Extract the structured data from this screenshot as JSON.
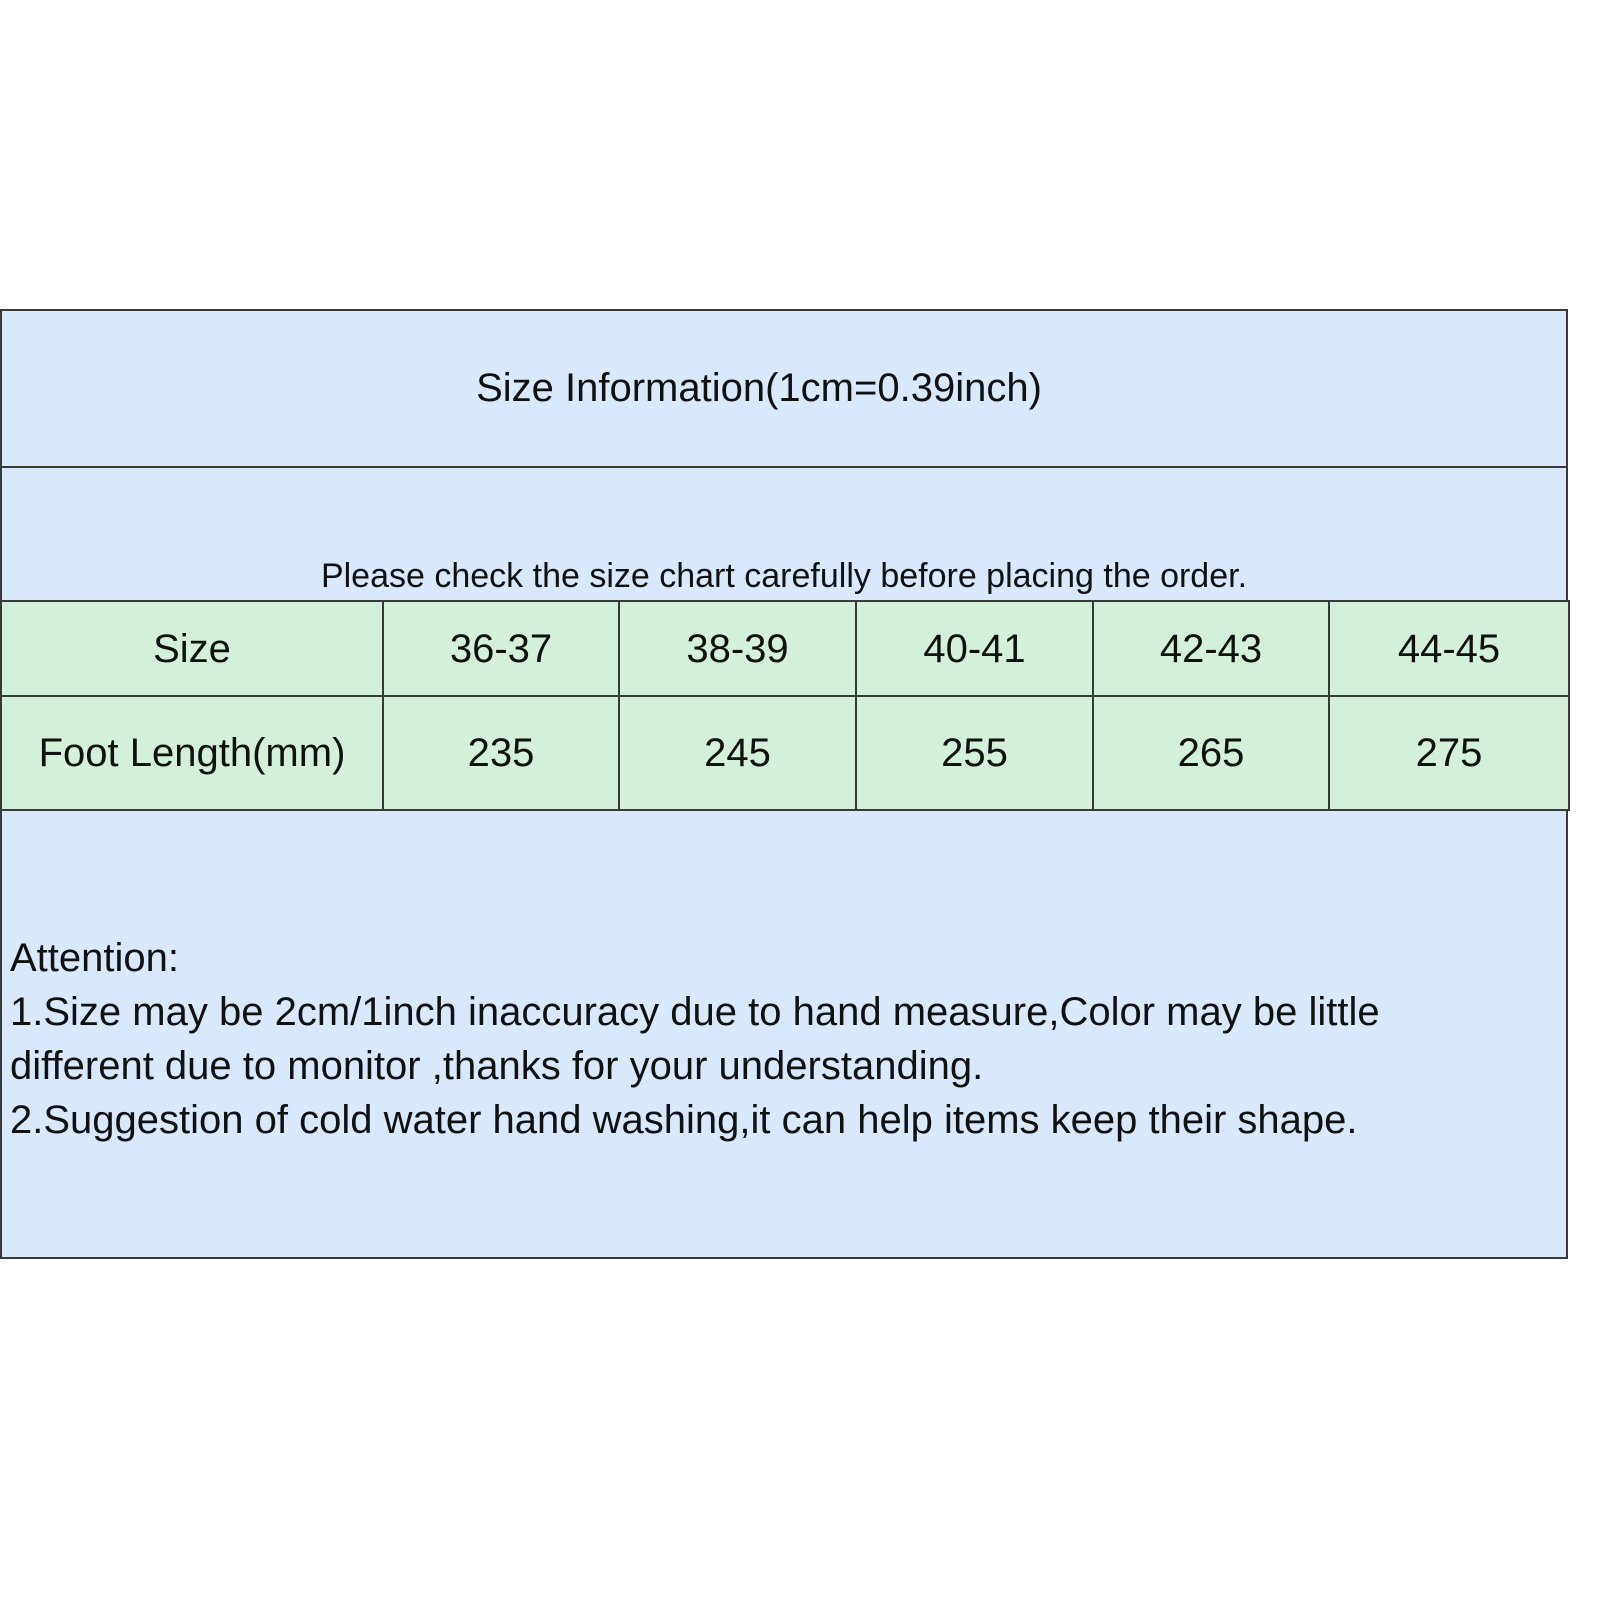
{
  "title": "Size Information(1cm=0.39inch)",
  "notice": "Please check the size chart carefully before placing the order.",
  "table": {
    "rows": [
      [
        "Size",
        "36-37",
        "38-39",
        "40-41",
        "42-43",
        "44-45"
      ],
      [
        "Foot Length(mm)",
        "235",
        "245",
        "255",
        "265",
        "275"
      ]
    ]
  },
  "attention": {
    "heading": "Attention:",
    "lines": [
      "1.Size may be 2cm/1inch inaccuracy due to hand measure,Color may be little",
      "different due to monitor ,thanks for your understanding.",
      "2.Suggestion of cold water hand washing,it can help items keep their shape."
    ]
  },
  "colors": {
    "header_bg": "#dae8fc",
    "table_bg": "#d5f0da",
    "border": "#3a3a3a"
  }
}
